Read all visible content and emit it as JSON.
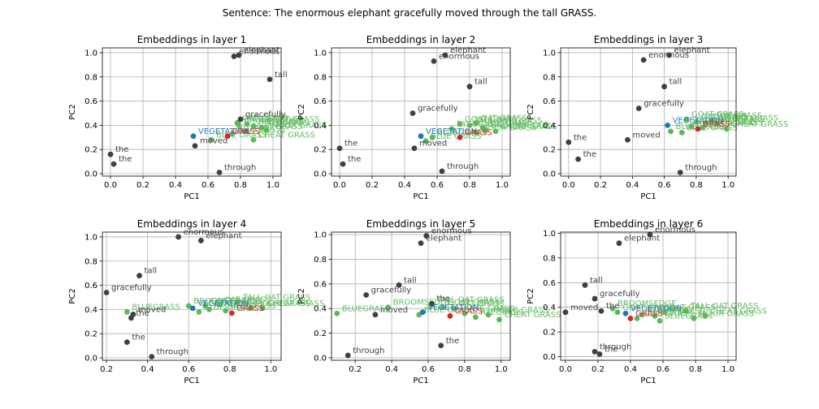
{
  "suptitle": "Sentence: The enormous elephant gracefully moved through the tall GRASS.",
  "colors": {
    "word": "#404040",
    "similar": "#5cb85c",
    "category": "#1f77b4",
    "target": "#d62728"
  },
  "chart_data": [
    {
      "type": "scatter",
      "title": "Embeddings in layer 1",
      "xlabel": "PC1",
      "ylabel": "PC2",
      "xlim": [
        -0.05,
        1.05
      ],
      "ylim": [
        -0.02,
        1.04
      ],
      "xticks": [
        0.0,
        0.2,
        0.4,
        0.6,
        0.8,
        1.0
      ],
      "yticks": [
        0.0,
        0.2,
        0.4,
        0.6,
        0.8,
        1.0
      ],
      "tick_labels_x": [
        "0.0",
        "0.2",
        "0.4",
        "0.6",
        "0.8",
        "1.0"
      ],
      "tick_labels_y": [
        "0.0",
        "0.2",
        "0.4",
        "0.6",
        "0.8",
        "1.0"
      ],
      "grid": true,
      "points": [
        {
          "label": "elephant",
          "x": 0.79,
          "y": 0.98,
          "group": "word"
        },
        {
          "label": "enormous",
          "x": 0.76,
          "y": 0.97,
          "group": "word"
        },
        {
          "label": "tall",
          "x": 0.98,
          "y": 0.78,
          "group": "word"
        },
        {
          "label": "gracefully",
          "x": 0.8,
          "y": 0.45,
          "group": "word"
        },
        {
          "label": "moved",
          "x": 0.52,
          "y": 0.23,
          "group": "word"
        },
        {
          "label": "the",
          "x": 0.0,
          "y": 0.16,
          "group": "word"
        },
        {
          "label": "the",
          "x": 0.02,
          "y": 0.08,
          "group": "word"
        },
        {
          "label": "through",
          "x": 0.67,
          "y": 0.01,
          "group": "word"
        },
        {
          "label": "VEGETATION",
          "x": 0.51,
          "y": 0.31,
          "group": "category"
        },
        {
          "label": "GRASS",
          "x": 0.72,
          "y": 0.31,
          "group": "target"
        },
        {
          "label": "OAT GRASS",
          "x": 0.78,
          "y": 0.42,
          "group": "similar"
        },
        {
          "label": "TALL OAT GRASS",
          "x": 0.84,
          "y": 0.41,
          "group": "similar"
        },
        {
          "label": "BROOMSEDGE",
          "x": 0.79,
          "y": 0.4,
          "group": "similar"
        },
        {
          "label": "RYE GRASS",
          "x": 0.88,
          "y": 0.39,
          "group": "similar"
        },
        {
          "label": "RYEGRASS",
          "x": 0.93,
          "y": 0.38,
          "group": "similar"
        },
        {
          "label": "BLUEGRASS",
          "x": 0.75,
          "y": 0.33,
          "group": "similar"
        },
        {
          "label": "GOAT GRASS",
          "x": 0.83,
          "y": 0.35,
          "group": "similar"
        },
        {
          "label": "MOOR GRASS",
          "x": 0.96,
          "y": 0.36,
          "group": "similar"
        },
        {
          "label": "BLUE GRASS",
          "x": 0.62,
          "y": 0.28,
          "group": "similar"
        },
        {
          "label": "CHEAT GRASS",
          "x": 0.88,
          "y": 0.28,
          "group": "similar"
        }
      ]
    },
    {
      "type": "scatter",
      "title": "Embeddings in layer 2",
      "xlabel": "PC1",
      "ylabel": "PC2",
      "xlim": [
        -0.05,
        1.05
      ],
      "ylim": [
        -0.02,
        1.04
      ],
      "xticks": [
        0.0,
        0.2,
        0.4,
        0.6,
        0.8,
        1.0
      ],
      "yticks": [
        0.0,
        0.2,
        0.4,
        0.6,
        0.8,
        1.0
      ],
      "tick_labels_x": [
        "0.0",
        "0.2",
        "0.4",
        "0.6",
        "0.8",
        "1.0"
      ],
      "tick_labels_y": [
        "0.0",
        "0.2",
        "0.4",
        "0.6",
        "0.8",
        "1.0"
      ],
      "grid": true,
      "points": [
        {
          "label": "elephant",
          "x": 0.65,
          "y": 0.98,
          "group": "word"
        },
        {
          "label": "enormous",
          "x": 0.58,
          "y": 0.93,
          "group": "word"
        },
        {
          "label": "tall",
          "x": 0.8,
          "y": 0.72,
          "group": "word"
        },
        {
          "label": "gracefully",
          "x": 0.45,
          "y": 0.5,
          "group": "word"
        },
        {
          "label": "moved",
          "x": 0.46,
          "y": 0.21,
          "group": "word"
        },
        {
          "label": "the",
          "x": 0.0,
          "y": 0.21,
          "group": "word"
        },
        {
          "label": "the",
          "x": 0.02,
          "y": 0.08,
          "group": "word"
        },
        {
          "label": "through",
          "x": 0.63,
          "y": 0.02,
          "group": "word"
        },
        {
          "label": "VEGETATION",
          "x": 0.5,
          "y": 0.31,
          "group": "category"
        },
        {
          "label": "GRASS",
          "x": 0.74,
          "y": 0.3,
          "group": "target"
        },
        {
          "label": "GOAT GRASS",
          "x": 0.74,
          "y": 0.41,
          "group": "similar"
        },
        {
          "label": "TALL OAT GRASS",
          "x": 0.8,
          "y": 0.4,
          "group": "similar"
        },
        {
          "label": "OAT GRASS",
          "x": 0.84,
          "y": 0.42,
          "group": "similar"
        },
        {
          "label": "RYE GRASS",
          "x": 0.88,
          "y": 0.38,
          "group": "similar"
        },
        {
          "label": "BROOMSEDGE",
          "x": 0.9,
          "y": 0.36,
          "group": "similar"
        },
        {
          "label": "CHEAT GRASS",
          "x": 0.96,
          "y": 0.35,
          "group": "similar"
        },
        {
          "label": "RYEGRASS",
          "x": 0.69,
          "y": 0.37,
          "group": "similar"
        },
        {
          "label": "MOOR GRASS",
          "x": 0.84,
          "y": 0.34,
          "group": "similar"
        },
        {
          "label": "BLUEGRASS",
          "x": 0.57,
          "y": 0.3,
          "group": "similar"
        },
        {
          "label": "BLUE GRASS",
          "x": 0.53,
          "y": 0.27,
          "group": "similar"
        }
      ]
    },
    {
      "type": "scatter",
      "title": "Embeddings in layer 3",
      "xlabel": "PC1",
      "ylabel": "PC2",
      "xlim": [
        -0.05,
        1.05
      ],
      "ylim": [
        -0.02,
        1.04
      ],
      "xticks": [
        0.0,
        0.2,
        0.4,
        0.6,
        0.8,
        1.0
      ],
      "yticks": [
        0.0,
        0.2,
        0.4,
        0.6,
        0.8,
        1.0
      ],
      "tick_labels_x": [
        "0.0",
        "0.2",
        "0.4",
        "0.6",
        "0.8",
        "1.0"
      ],
      "tick_labels_y": [
        "0.0",
        "0.2",
        "0.4",
        "0.6",
        "0.8",
        "1.0"
      ],
      "grid": true,
      "points": [
        {
          "label": "elephant",
          "x": 0.63,
          "y": 0.98,
          "group": "word"
        },
        {
          "label": "enormous",
          "x": 0.47,
          "y": 0.94,
          "group": "word"
        },
        {
          "label": "tall",
          "x": 0.6,
          "y": 0.72,
          "group": "word"
        },
        {
          "label": "gracefully",
          "x": 0.44,
          "y": 0.54,
          "group": "word"
        },
        {
          "label": "moved",
          "x": 0.37,
          "y": 0.28,
          "group": "word"
        },
        {
          "label": "the",
          "x": 0.0,
          "y": 0.26,
          "group": "word"
        },
        {
          "label": "the",
          "x": 0.06,
          "y": 0.12,
          "group": "word"
        },
        {
          "label": "through",
          "x": 0.7,
          "y": 0.01,
          "group": "word"
        },
        {
          "label": "VEGETATION",
          "x": 0.62,
          "y": 0.4,
          "group": "category"
        },
        {
          "label": "GRASS",
          "x": 0.81,
          "y": 0.37,
          "group": "target"
        },
        {
          "label": "GOAT GRASS",
          "x": 0.74,
          "y": 0.45,
          "group": "similar"
        },
        {
          "label": "OAT GRASS",
          "x": 0.8,
          "y": 0.43,
          "group": "similar"
        },
        {
          "label": "TALL OAT GRASS",
          "x": 0.86,
          "y": 0.42,
          "group": "similar"
        },
        {
          "label": "RYE GRASS",
          "x": 0.9,
          "y": 0.44,
          "group": "similar"
        },
        {
          "label": "RYEGRASS",
          "x": 0.93,
          "y": 0.41,
          "group": "similar"
        },
        {
          "label": "BROOMSEDGE",
          "x": 0.77,
          "y": 0.39,
          "group": "similar"
        },
        {
          "label": "MOOR GRASS",
          "x": 0.84,
          "y": 0.38,
          "group": "similar"
        },
        {
          "label": "CHEAT GRASS",
          "x": 0.99,
          "y": 0.37,
          "group": "similar"
        },
        {
          "label": "BLUEGRASS",
          "x": 0.64,
          "y": 0.35,
          "group": "similar"
        },
        {
          "label": "BLUE GRASS",
          "x": 0.71,
          "y": 0.34,
          "group": "similar"
        }
      ]
    },
    {
      "type": "scatter",
      "title": "Embeddings in layer 4",
      "xlabel": "PC1",
      "ylabel": "PC2",
      "xlim": [
        0.18,
        1.05
      ],
      "ylim": [
        -0.02,
        1.04
      ],
      "xticks": [
        0.2,
        0.4,
        0.6,
        0.8,
        1.0
      ],
      "yticks": [
        0.0,
        0.2,
        0.4,
        0.6,
        0.8,
        1.0
      ],
      "tick_labels_x": [
        "0.2",
        "0.4",
        "0.6",
        "0.8",
        "1.0"
      ],
      "tick_labels_y": [
        "0.0",
        "0.2",
        "0.4",
        "0.6",
        "0.8",
        "1.0"
      ],
      "grid": true,
      "points": [
        {
          "label": "enormous",
          "x": 0.55,
          "y": 1.0,
          "group": "word"
        },
        {
          "label": "elephant",
          "x": 0.66,
          "y": 0.97,
          "group": "word"
        },
        {
          "label": "tall",
          "x": 0.36,
          "y": 0.68,
          "group": "word"
        },
        {
          "label": "gracefully",
          "x": 0.2,
          "y": 0.54,
          "group": "word"
        },
        {
          "label": "the",
          "x": 0.32,
          "y": 0.33,
          "group": "word"
        },
        {
          "label": "moved",
          "x": 0.33,
          "y": 0.36,
          "group": "word"
        },
        {
          "label": "the",
          "x": 0.3,
          "y": 0.13,
          "group": "word"
        },
        {
          "label": "through",
          "x": 0.42,
          "y": 0.01,
          "group": "word"
        },
        {
          "label": "VEGETATION",
          "x": 0.62,
          "y": 0.41,
          "group": "category"
        },
        {
          "label": "GRASS",
          "x": 0.81,
          "y": 0.37,
          "group": "target"
        },
        {
          "label": "TALL OAT GRASS",
          "x": 0.84,
          "y": 0.46,
          "group": "similar"
        },
        {
          "label": "BROOMSEDGE",
          "x": 0.6,
          "y": 0.43,
          "group": "similar"
        },
        {
          "label": "GOAT GRASS",
          "x": 0.68,
          "y": 0.43,
          "group": "similar"
        },
        {
          "label": "OAT GRASS",
          "x": 0.75,
          "y": 0.44,
          "group": "similar"
        },
        {
          "label": "RYEGRASS",
          "x": 0.7,
          "y": 0.4,
          "group": "similar"
        },
        {
          "label": "BLUEGRASS",
          "x": 0.3,
          "y": 0.38,
          "group": "similar"
        },
        {
          "label": "RYE GRASS",
          "x": 0.78,
          "y": 0.39,
          "group": "similar"
        },
        {
          "label": "BLUE GRASS",
          "x": 0.65,
          "y": 0.38,
          "group": "similar"
        },
        {
          "label": "MOOR GRASS",
          "x": 0.9,
          "y": 0.41,
          "group": "similar"
        },
        {
          "label": "CHEAT GRASS",
          "x": 0.96,
          "y": 0.41,
          "group": "similar"
        }
      ]
    },
    {
      "type": "scatter",
      "title": "Embeddings in layer 5",
      "xlabel": "PC1",
      "ylabel": "PC2",
      "xlim": [
        0.07,
        1.05
      ],
      "ylim": [
        -0.02,
        1.02
      ],
      "xticks": [
        0.2,
        0.4,
        0.6,
        0.8,
        1.0
      ],
      "yticks": [
        0.0,
        0.2,
        0.4,
        0.6,
        0.8,
        1.0
      ],
      "tick_labels_x": [
        "0.2",
        "0.4",
        "0.6",
        "0.8",
        "1.0"
      ],
      "tick_labels_y": [
        "0.0",
        "0.2",
        "0.4",
        "0.6",
        "0.8",
        "1.0"
      ],
      "grid": true,
      "points": [
        {
          "label": "enormous",
          "x": 0.59,
          "y": 0.99,
          "group": "word"
        },
        {
          "label": "elephant",
          "x": 0.56,
          "y": 0.93,
          "group": "word"
        },
        {
          "label": "tall",
          "x": 0.44,
          "y": 0.59,
          "group": "word"
        },
        {
          "label": "gracefully",
          "x": 0.26,
          "y": 0.51,
          "group": "word"
        },
        {
          "label": "moved",
          "x": 0.31,
          "y": 0.35,
          "group": "word"
        },
        {
          "label": "the",
          "x": 0.67,
          "y": 0.1,
          "group": "word"
        },
        {
          "label": "the",
          "x": 0.62,
          "y": 0.44,
          "group": "word"
        },
        {
          "label": "through",
          "x": 0.16,
          "y": 0.02,
          "group": "word"
        },
        {
          "label": "VEGETATION",
          "x": 0.57,
          "y": 0.37,
          "group": "category"
        },
        {
          "label": "GRASS",
          "x": 0.72,
          "y": 0.34,
          "group": "target"
        },
        {
          "label": "BROOMSEDGE",
          "x": 0.38,
          "y": 0.41,
          "group": "similar"
        },
        {
          "label": "TALL OAT GRASS",
          "x": 0.62,
          "y": 0.43,
          "group": "similar"
        },
        {
          "label": "GOAT GRASS",
          "x": 0.68,
          "y": 0.41,
          "group": "similar"
        },
        {
          "label": "OAT GRASS",
          "x": 0.74,
          "y": 0.4,
          "group": "similar"
        },
        {
          "label": "BLUEGRASS",
          "x": 0.1,
          "y": 0.36,
          "group": "similar"
        },
        {
          "label": "BLUE GRASS",
          "x": 0.55,
          "y": 0.35,
          "group": "similar"
        },
        {
          "label": "RYE GRASS",
          "x": 0.8,
          "y": 0.36,
          "group": "similar"
        },
        {
          "label": "RYEGRASS",
          "x": 0.86,
          "y": 0.33,
          "group": "similar"
        },
        {
          "label": "MOOR GRASS",
          "x": 0.93,
          "y": 0.35,
          "group": "similar"
        },
        {
          "label": "CHEAT GRASS",
          "x": 0.99,
          "y": 0.31,
          "group": "similar"
        }
      ]
    },
    {
      "type": "scatter",
      "title": "Embeddings in layer 6",
      "xlabel": "PC1",
      "ylabel": "PC2",
      "xlim": [
        -0.03,
        1.05
      ],
      "ylim": [
        -0.03,
        1.01
      ],
      "xticks": [
        0.0,
        0.2,
        0.4,
        0.6,
        0.8,
        1.0
      ],
      "yticks": [
        0.0,
        0.2,
        0.4,
        0.6,
        0.8,
        1.0
      ],
      "tick_labels_x": [
        "0.0",
        "0.2",
        "0.4",
        "0.6",
        "0.8",
        "1.0"
      ],
      "tick_labels_y": [
        "0.0",
        "0.2",
        "0.4",
        "0.6",
        "0.8",
        "1.0"
      ],
      "grid": true,
      "points": [
        {
          "label": "enormous",
          "x": 0.52,
          "y": 0.99,
          "group": "word"
        },
        {
          "label": "elephant",
          "x": 0.33,
          "y": 0.92,
          "group": "word"
        },
        {
          "label": "tall",
          "x": 0.12,
          "y": 0.58,
          "group": "word"
        },
        {
          "label": "gracefully",
          "x": 0.18,
          "y": 0.47,
          "group": "word"
        },
        {
          "label": "moved",
          "x": 0.0,
          "y": 0.36,
          "group": "word"
        },
        {
          "label": "the",
          "x": 0.22,
          "y": 0.37,
          "group": "word"
        },
        {
          "label": "the",
          "x": 0.21,
          "y": 0.02,
          "group": "word"
        },
        {
          "label": "through",
          "x": 0.18,
          "y": 0.04,
          "group": "word"
        },
        {
          "label": "VEGETATION",
          "x": 0.37,
          "y": 0.35,
          "group": "category"
        },
        {
          "label": "GRASS",
          "x": 0.4,
          "y": 0.31,
          "group": "target"
        },
        {
          "label": "BROOMSEDGE",
          "x": 0.29,
          "y": 0.39,
          "group": "similar"
        },
        {
          "label": "GOAT GRASS",
          "x": 0.32,
          "y": 0.36,
          "group": "similar"
        },
        {
          "label": "TALL OAT GRASS",
          "x": 0.74,
          "y": 0.37,
          "group": "similar"
        },
        {
          "label": "OAT GRASS",
          "x": 0.61,
          "y": 0.36,
          "group": "similar"
        },
        {
          "label": "RYEGRASS",
          "x": 0.47,
          "y": 0.34,
          "group": "similar"
        },
        {
          "label": "RYE GRASS",
          "x": 0.55,
          "y": 0.33,
          "group": "similar"
        },
        {
          "label": "BLUE GRASS",
          "x": 0.44,
          "y": 0.31,
          "group": "similar"
        },
        {
          "label": "MOOR GRASS",
          "x": 0.79,
          "y": 0.31,
          "group": "similar"
        },
        {
          "label": "CHEAT GRASS",
          "x": 0.86,
          "y": 0.33,
          "group": "similar"
        },
        {
          "label": "BLUEGRASS",
          "x": 0.58,
          "y": 0.29,
          "group": "similar"
        }
      ]
    }
  ]
}
